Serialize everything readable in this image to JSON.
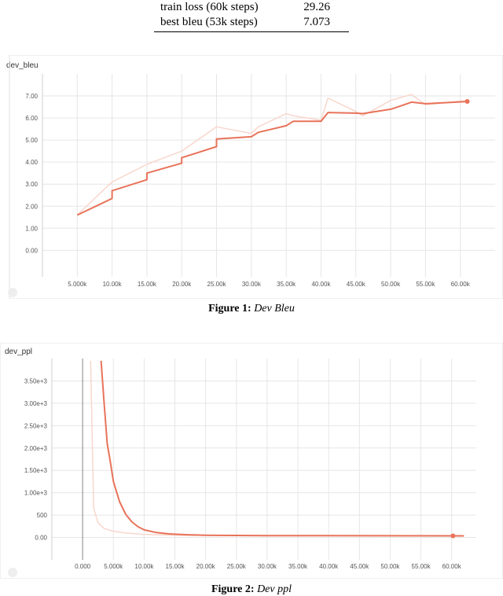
{
  "table": {
    "rows": [
      {
        "label": "train loss (60k steps)",
        "value": "29.26"
      },
      {
        "label": "best bleu (53k steps)",
        "value": "7.073"
      }
    ]
  },
  "captions": {
    "fig1_label": "Figure 1:",
    "fig1_text": "Dev Bleu",
    "fig2_label": "Figure 2:",
    "fig2_text": "Dev ppl"
  },
  "chart_data": [
    {
      "type": "line",
      "title": "dev_bleu",
      "xlabel": "",
      "ylabel": "",
      "xlim": [
        0,
        65
      ],
      "ylim": [
        -1.2,
        8.0
      ],
      "xticks": [
        5,
        10,
        15,
        20,
        25,
        30,
        35,
        40,
        45,
        50,
        55,
        60
      ],
      "xtick_labels": [
        "5.000k",
        "10.00k",
        "15.00k",
        "20.00k",
        "25.00k",
        "30.00k",
        "35.00k",
        "40.00k",
        "45.00k",
        "50.00k",
        "55.00k",
        "60.00k"
      ],
      "yticks": [
        0,
        1,
        2,
        3,
        4,
        5,
        6,
        7
      ],
      "ytick_labels": [
        "0.00",
        "1.00",
        "2.00",
        "3.00",
        "4.00",
        "5.00",
        "6.00",
        "7.00"
      ],
      "colors": {
        "smoothed": "#e8735a",
        "raw": "#f8d7cd"
      },
      "series": [
        {
          "role": "raw",
          "x": [
            5,
            10,
            15,
            20,
            25,
            30,
            31,
            35,
            36,
            40,
            41,
            45,
            46,
            50,
            53,
            55,
            61
          ],
          "y": [
            1.6,
            3.1,
            3.9,
            4.5,
            5.6,
            5.3,
            5.6,
            6.2,
            6.1,
            5.9,
            6.9,
            6.3,
            6.1,
            6.8,
            7.07,
            6.6,
            6.8
          ]
        },
        {
          "role": "smoothed",
          "x": [
            5,
            10,
            10,
            15,
            15,
            20,
            20,
            25,
            25,
            30,
            31,
            35,
            36,
            40,
            41,
            45,
            46,
            50,
            51,
            53,
            55,
            61
          ],
          "y": [
            1.6,
            2.35,
            2.7,
            3.2,
            3.5,
            3.95,
            4.2,
            4.7,
            5.05,
            5.15,
            5.35,
            5.65,
            5.85,
            5.85,
            6.25,
            6.22,
            6.2,
            6.4,
            6.5,
            6.72,
            6.65,
            6.75
          ]
        }
      ]
    },
    {
      "type": "line",
      "title": "dev_ppl",
      "xlabel": "",
      "ylabel": "",
      "xlim": [
        -5,
        64
      ],
      "ylim": [
        -500,
        4000
      ],
      "xticks": [
        0,
        5,
        10,
        15,
        20,
        25,
        30,
        35,
        40,
        45,
        50,
        55,
        60
      ],
      "xtick_labels": [
        "0.000",
        "5.000k",
        "10.00k",
        "15.00k",
        "20.00k",
        "25.00k",
        "30.00k",
        "35.00k",
        "40.00k",
        "45.00k",
        "50.00k",
        "55.00k",
        "60.00k"
      ],
      "yticks": [
        0,
        500,
        1000,
        1500,
        2000,
        2500,
        3000,
        3500
      ],
      "ytick_labels": [
        "0.00",
        "500",
        "1.00e+3",
        "1.50e+3",
        "2.00e+3",
        "2.50e+3",
        "3.00e+3",
        "3.50e+3"
      ],
      "colors": {
        "smoothed": "#e8735a",
        "raw": "#f8d7cd"
      },
      "series": [
        {
          "role": "raw",
          "x": [
            1.3,
            1.8,
            2.5,
            3.5,
            5,
            7,
            10,
            15,
            20,
            30,
            40,
            62
          ],
          "y": [
            3950,
            650,
            330,
            200,
            140,
            100,
            70,
            50,
            45,
            42,
            40,
            38
          ]
        },
        {
          "role": "smoothed",
          "x": [
            3,
            3.5,
            4,
            4.5,
            5,
            6,
            7,
            8,
            9,
            10,
            12,
            14,
            17,
            20,
            25,
            30,
            40,
            50,
            62
          ],
          "y": [
            3950,
            3000,
            2100,
            1700,
            1250,
            800,
            520,
            350,
            240,
            170,
            110,
            80,
            60,
            50,
            45,
            42,
            40,
            38,
            37
          ]
        }
      ]
    }
  ]
}
